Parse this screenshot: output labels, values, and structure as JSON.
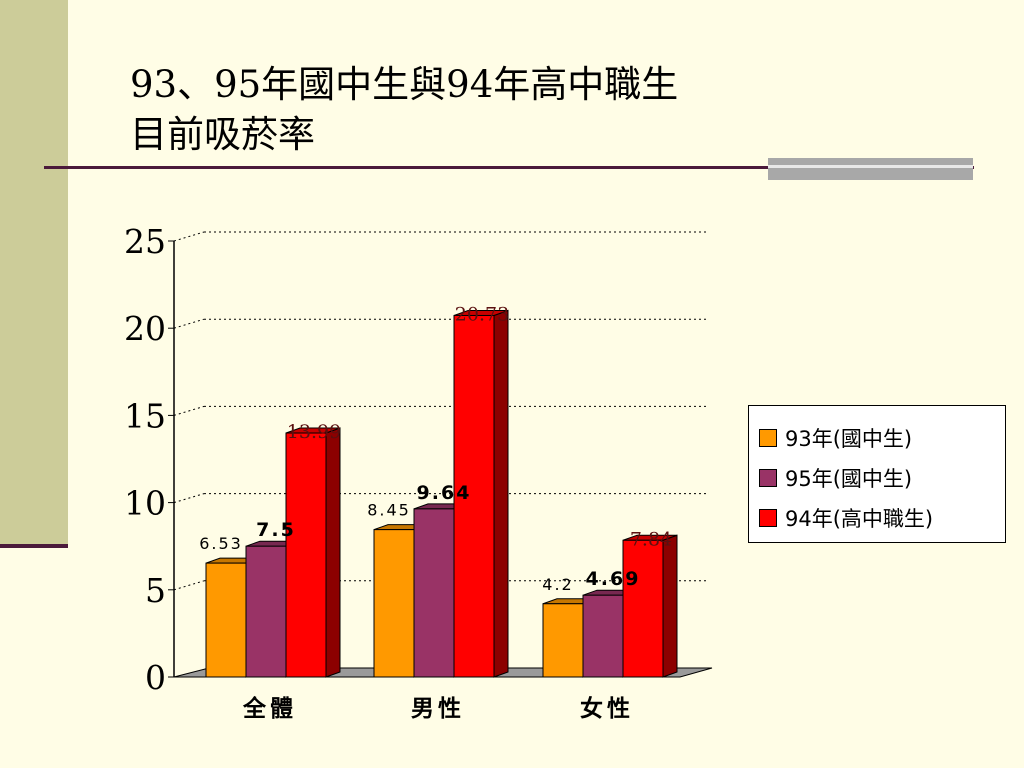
{
  "slide": {
    "title_line1": "93、95年國中生與94年高中職生",
    "title_line2": "目前吸菸率"
  },
  "chart_data": {
    "type": "bar",
    "categories": [
      "全體",
      "男性",
      "女性"
    ],
    "series": [
      {
        "name": "93年(國中生)",
        "color": "#FF9900",
        "values": [
          6.53,
          8.45,
          4.2
        ]
      },
      {
        "name": "95年(國中生)",
        "color": "#993366",
        "values": [
          7.5,
          9.64,
          4.69
        ]
      },
      {
        "name": "94年(高中職生)",
        "color": "#FF0000",
        "values": [
          13.99,
          20.73,
          7.84
        ]
      }
    ],
    "ylim": [
      0,
      25
    ],
    "yticks": [
      0,
      5,
      10,
      15,
      20,
      25
    ],
    "grid": true,
    "legend_position": "right"
  }
}
